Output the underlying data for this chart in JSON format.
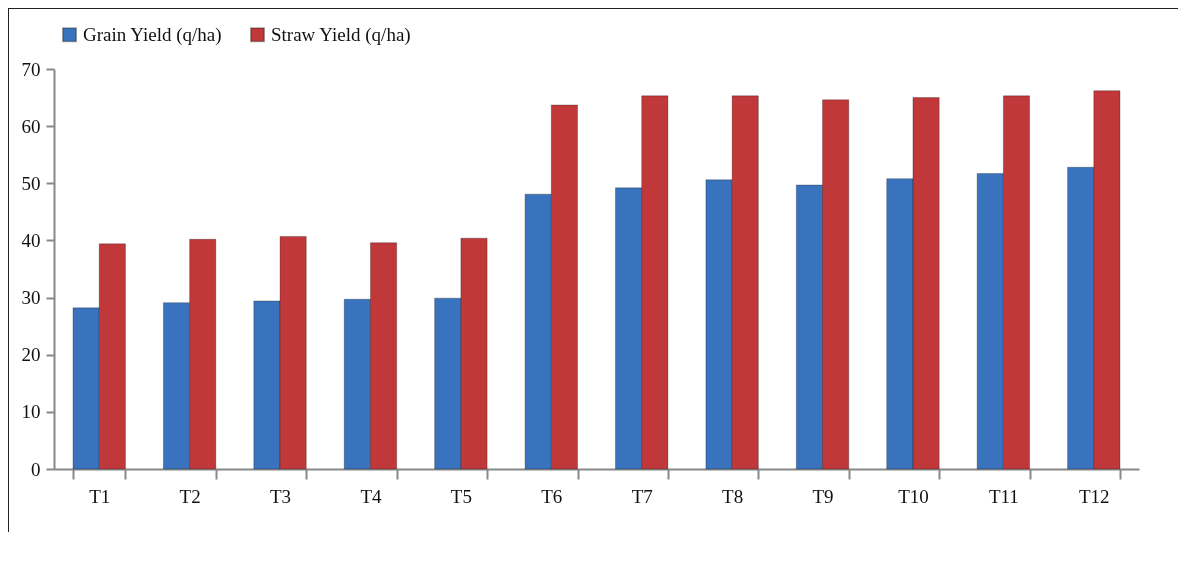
{
  "chart_data": {
    "type": "bar",
    "categories": [
      "T1",
      "T2",
      "T3",
      "T4",
      "T5",
      "T6",
      "T7",
      "T8",
      "T9",
      "T10",
      "T11",
      "T12"
    ],
    "series": [
      {
        "name": "Grain Yield (q/ha)",
        "color": "#3a73bd",
        "values": [
          28.2,
          29.1,
          29.4,
          29.7,
          29.9,
          48.1,
          49.2,
          50.6,
          49.7,
          50.8,
          51.7,
          52.8
        ]
      },
      {
        "name": "Straw Yield (q/ha)",
        "color": "#c0383a",
        "values": [
          39.4,
          40.2,
          40.7,
          39.6,
          40.4,
          63.7,
          65.3,
          65.3,
          64.6,
          65.0,
          65.3,
          66.2
        ]
      }
    ],
    "ylim": [
      0,
      70
    ],
    "yticks": [
      0,
      10,
      20,
      30,
      40,
      50,
      60,
      70
    ],
    "grid": false,
    "legend": "top"
  }
}
